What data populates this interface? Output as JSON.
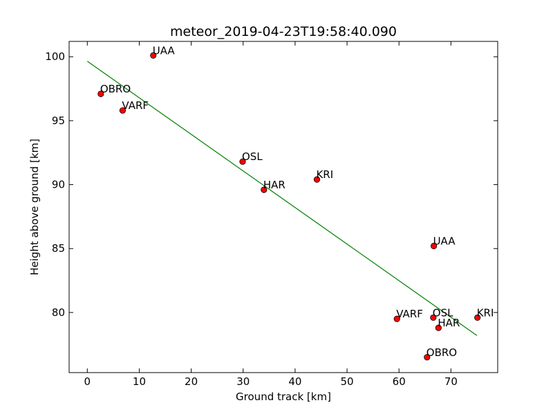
{
  "chart_data": {
    "type": "scatter",
    "title": "meteor_2019-04-23T19:58:40.090",
    "xlabel": "Ground track [km]",
    "ylabel": "Height above ground [km]",
    "xlim": [
      -3.5,
      79
    ],
    "ylim": [
      75.3,
      101.2
    ],
    "xticks": [
      0,
      10,
      20,
      30,
      40,
      50,
      60,
      70
    ],
    "yticks": [
      80,
      85,
      90,
      95,
      100
    ],
    "xtick_labels": [
      "0",
      "10",
      "20",
      "30",
      "40",
      "50",
      "60",
      "70"
    ],
    "ytick_labels": [
      "80",
      "85",
      "90",
      "95",
      "100"
    ],
    "grid": false,
    "points": [
      {
        "label": "UAA",
        "x": 12.7,
        "y": 100.1
      },
      {
        "label": "OBRO",
        "x": 2.6,
        "y": 97.1
      },
      {
        "label": "VARF",
        "x": 6.8,
        "y": 95.8
      },
      {
        "label": "OSL",
        "x": 29.9,
        "y": 91.8
      },
      {
        "label": "KRI",
        "x": 44.2,
        "y": 90.4
      },
      {
        "label": "HAR",
        "x": 34.0,
        "y": 89.6
      },
      {
        "label": "UAA",
        "x": 66.7,
        "y": 85.2
      },
      {
        "label": "VARF",
        "x": 59.6,
        "y": 79.5
      },
      {
        "label": "OSL",
        "x": 66.6,
        "y": 79.6
      },
      {
        "label": "KRI",
        "x": 75.1,
        "y": 79.6
      },
      {
        "label": "HAR",
        "x": 67.6,
        "y": 78.8
      },
      {
        "label": "OBRO",
        "x": 65.4,
        "y": 76.5
      }
    ],
    "fit_line": {
      "x": [
        0,
        75.0
      ],
      "y": [
        99.65,
        78.2
      ]
    },
    "colors": {
      "point_fill": "#ff0000",
      "point_edge": "#000000",
      "line": "#008000"
    }
  }
}
